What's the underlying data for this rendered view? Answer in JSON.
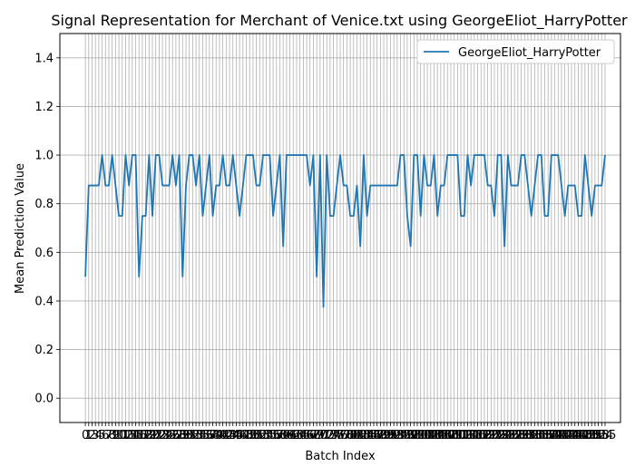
{
  "chart_data": {
    "type": "line",
    "title": "Signal Representation for Merchant of Venice.txt using GeorgeEliot_HarryPotter",
    "xlabel": "Batch Index",
    "ylabel": "Mean Prediction Value",
    "ylim": [
      -0.1,
      1.5
    ],
    "xlim": [
      -7.6,
      159.6
    ],
    "yticks": [
      0.0,
      0.2,
      0.4,
      0.6,
      0.8,
      1.0,
      1.2,
      1.4
    ],
    "ytick_labels": [
      "0.0",
      "0.2",
      "0.4",
      "0.6",
      "0.8",
      "1.0",
      "1.2",
      "1.4"
    ],
    "grid": true,
    "legend_position": "top-right",
    "series": [
      {
        "name": "GeorgeEliot_HarryPotter",
        "color": "#1f77b4",
        "values": [
          0.5,
          0.875,
          0.875,
          0.875,
          0.875,
          1.0,
          0.875,
          0.875,
          1.0,
          0.875,
          0.75,
          0.75,
          1.0,
          0.875,
          1.0,
          1.0,
          0.5,
          0.75,
          0.75,
          1.0,
          0.75,
          1.0,
          1.0,
          0.875,
          0.875,
          0.875,
          1.0,
          0.875,
          1.0,
          0.5,
          0.875,
          1.0,
          1.0,
          0.875,
          1.0,
          0.75,
          0.875,
          1.0,
          0.75,
          0.875,
          0.875,
          1.0,
          0.875,
          0.875,
          1.0,
          0.875,
          0.75,
          0.875,
          1.0,
          1.0,
          1.0,
          0.875,
          0.875,
          1.0,
          1.0,
          1.0,
          0.75,
          0.875,
          1.0,
          0.625,
          1.0,
          1.0,
          1.0,
          1.0,
          1.0,
          1.0,
          1.0,
          0.875,
          1.0,
          0.5,
          1.0,
          0.375,
          1.0,
          0.75,
          0.75,
          0.875,
          1.0,
          0.875,
          0.875,
          0.75,
          0.75,
          0.875,
          0.625,
          1.0,
          0.75,
          0.875,
          0.875,
          0.875,
          0.875,
          0.875,
          0.875,
          0.875,
          0.875,
          0.875,
          1.0,
          1.0,
          0.75,
          0.625,
          1.0,
          1.0,
          0.75,
          1.0,
          0.875,
          0.875,
          1.0,
          0.75,
          0.875,
          0.875,
          1.0,
          1.0,
          1.0,
          1.0,
          0.75,
          0.75,
          1.0,
          0.875,
          1.0,
          1.0,
          1.0,
          1.0,
          0.875,
          0.875,
          0.75,
          1.0,
          1.0,
          0.625,
          1.0,
          0.875,
          0.875,
          0.875,
          1.0,
          1.0,
          0.875,
          0.75,
          0.875,
          1.0,
          1.0,
          0.75,
          0.75,
          1.0,
          1.0,
          1.0,
          0.875,
          0.75,
          0.875,
          0.875,
          0.875,
          0.75,
          0.75,
          1.0,
          0.875,
          0.75,
          0.875,
          0.875,
          0.875,
          1.0
        ]
      }
    ]
  }
}
